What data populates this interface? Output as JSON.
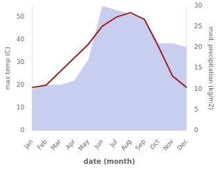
{
  "chart_data": {
    "type": "line",
    "xlabel": "date (month)",
    "ylabel": "max temp (C)",
    "y2label": "med. precipitation (kg/m2)",
    "categories": [
      "Jan",
      "Feb",
      "Mar",
      "Apr",
      "May",
      "Jun",
      "Jul",
      "Aug",
      "Sep",
      "Oct",
      "Nov",
      "Dec"
    ],
    "series": [
      {
        "type": "area",
        "axis": "y2",
        "color": "#aab4e8",
        "values": [
          10,
          11,
          11,
          12,
          17,
          30,
          29,
          28,
          27,
          21,
          21,
          20
        ]
      },
      {
        "type": "line",
        "color": "#a02020",
        "values": [
          19,
          20,
          26,
          32,
          38,
          46,
          50,
          52,
          49,
          37,
          24,
          19
        ]
      }
    ],
    "ylim": [
      0,
      55
    ],
    "yticks": [
      0,
      10,
      20,
      30,
      40,
      50
    ],
    "y2lim": [
      0,
      30
    ],
    "y2ticks": [
      0,
      5,
      10,
      15,
      20,
      25,
      30
    ],
    "grid": false
  }
}
